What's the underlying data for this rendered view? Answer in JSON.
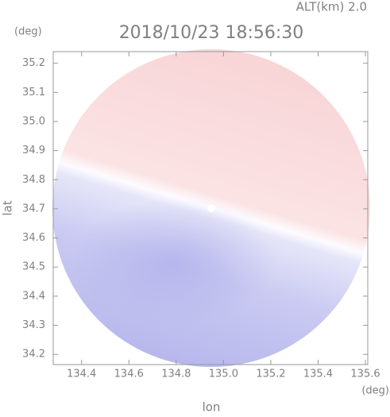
{
  "chart_data": {
    "type": "radar-map",
    "title": "2018/10/23 18:56:30",
    "altitude_label": "ALT(km)  2.0",
    "y_unit": "(deg)",
    "x_unit": "(deg)",
    "xlabel": "lon",
    "ylabel": "lat",
    "xlim": [
      134.28,
      135.61
    ],
    "ylim": [
      34.165,
      35.24
    ],
    "xticks": [
      134.4,
      134.6,
      134.8,
      {
        "value": 135,
        "label": "135.0"
      },
      135.2,
      135.4,
      135.6
    ],
    "yticks": [
      34.2,
      34.3,
      34.4,
      34.5,
      34.6,
      34.7,
      34.8,
      34.9,
      {
        "value": 35,
        "label": "35.0"
      },
      35.1,
      35.2
    ]
  }
}
